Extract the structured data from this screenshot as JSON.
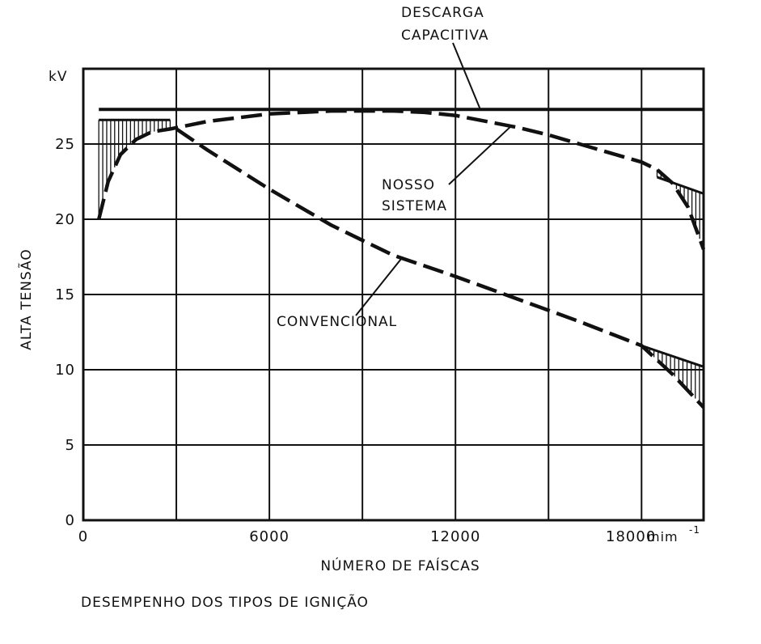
{
  "chart_data": {
    "type": "line",
    "title": "",
    "caption": "DESEMPENHO DOS TIPOS DE IGNIÇÃO",
    "xlabel": "NÚMERO DE FAÍSCAS",
    "x_unit": "mim",
    "x_unit_sup": "-1",
    "ylabel": "ALTA TENSÃO",
    "y_unit": "kV",
    "xlim": [
      0,
      20000
    ],
    "ylim": [
      0,
      30
    ],
    "x_ticks": [
      0,
      6000,
      12000,
      18000
    ],
    "x_tick_labels": [
      "0",
      "6000",
      "12000",
      "18000"
    ],
    "x_grid": [
      0,
      3000,
      6000,
      9000,
      12000,
      15000,
      18000,
      20000
    ],
    "y_ticks": [
      0,
      5,
      10,
      15,
      20,
      25
    ],
    "y_tick_labels": [
      "0",
      "5",
      "10",
      "15",
      "20",
      "25"
    ],
    "grid": true,
    "series": [
      {
        "name": "DESCARGA CAPACITIVA",
        "style": "solid",
        "x": [
          500,
          20000
        ],
        "y": [
          27.3,
          27.3
        ]
      },
      {
        "name": "NOSSO SISTEMA",
        "style": "dashed",
        "x": [
          500,
          800,
          1200,
          1700,
          2200,
          2800,
          4000,
          6000,
          8000,
          10000,
          11000,
          12000,
          13000,
          14000,
          15000,
          16000,
          17000,
          18000,
          18500,
          19000,
          19500,
          20000
        ],
        "y": [
          20.0,
          22.5,
          24.3,
          25.3,
          25.8,
          26.0,
          26.5,
          27.0,
          27.2,
          27.2,
          27.1,
          26.9,
          26.5,
          26.1,
          25.6,
          25.0,
          24.4,
          23.8,
          23.3,
          22.4,
          20.8,
          18.0
        ]
      },
      {
        "name": "CONVENCIONAL",
        "style": "dashed",
        "x": [
          3000,
          4000,
          6000,
          8000,
          10000,
          12000,
          14000,
          16000,
          18000,
          19000,
          20000
        ],
        "y": [
          26.0,
          24.6,
          22.0,
          19.6,
          17.6,
          16.2,
          14.7,
          13.2,
          11.6,
          9.7,
          7.5
        ]
      }
    ],
    "annotations": [
      {
        "text": "DESCARGA",
        "points_to": "DESCARGA CAPACITIVA"
      },
      {
        "text": "CAPACITIVA",
        "points_to": "DESCARGA CAPACITIVA"
      },
      {
        "text": "NOSSO",
        "points_to": "NOSSO SISTEMA"
      },
      {
        "text": "SISTEMA",
        "points_to": "NOSSO SISTEMA"
      },
      {
        "text": "CONVENCIONAL",
        "points_to": "CONVENCIONAL"
      }
    ],
    "hatched_regions": [
      {
        "between": [
          "DESCARGA CAPACITIVA",
          "NOSSO SISTEMA"
        ],
        "x_from": 500,
        "x_to": 2800,
        "top": 26.6
      },
      {
        "between": [
          "DESCARGA CAPACITIVA",
          "NOSSO SISTEMA"
        ],
        "x_from": 18500,
        "x_to": 20000,
        "top": 22.8,
        "top_end": 21.7
      },
      {
        "between": [
          "NOSSO SISTEMA",
          "CONVENCIONAL"
        ],
        "x_from": 18000,
        "x_to": 20000,
        "top": 11.6,
        "top_end": 10.2
      }
    ]
  }
}
